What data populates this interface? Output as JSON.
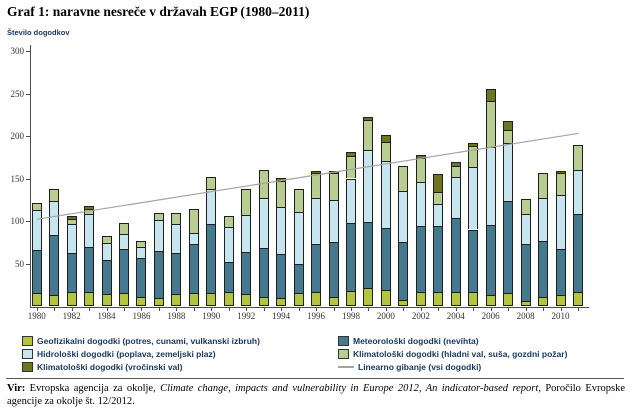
{
  "title": "Graf 1: naravne nesreče v državah EGP (1980–2011)",
  "y_axis_label": "Število dogodkov",
  "chart_data": {
    "type": "bar",
    "stacked": true,
    "title": "Graf 1: naravne nesreče v državah EGP (1980–2011)",
    "xlabel": "",
    "ylabel": "Število dogodkov",
    "ylim": [
      0,
      300
    ],
    "y_ticks": [
      50,
      100,
      150,
      200,
      250,
      300
    ],
    "grid": false,
    "legend_position": "bottom",
    "categories": [
      1980,
      1981,
      1982,
      1983,
      1984,
      1985,
      1986,
      1987,
      1988,
      1989,
      1990,
      1991,
      1992,
      1993,
      1994,
      1995,
      1996,
      1997,
      1998,
      1999,
      2000,
      2001,
      2002,
      2003,
      2004,
      2005,
      2006,
      2007,
      2008,
      2009,
      2010,
      2011
    ],
    "x_tick_labels": [
      "1980",
      "1982",
      "1984",
      "1986",
      "1988",
      "1990",
      "1992",
      "1994",
      "1996",
      "1998",
      "2000",
      "2002",
      "2004",
      "2006",
      "2008",
      "2010"
    ],
    "series": [
      {
        "name": "Geofizikalni dogodki (potres, cunami, vulkanski izbruh)",
        "color": "#b3c540",
        "values": [
          15,
          13,
          16,
          16,
          14,
          15,
          11,
          10,
          14,
          15,
          15,
          16,
          14,
          11,
          9,
          15,
          16,
          11,
          18,
          21,
          19,
          7,
          17,
          17,
          17,
          16,
          13,
          15,
          6,
          11,
          13,
          16
        ]
      },
      {
        "name": "Meteorološki dogodki (nevihta)",
        "color": "#44798e",
        "values": [
          51,
          71,
          46,
          53,
          40,
          52,
          46,
          55,
          48,
          58,
          82,
          36,
          49,
          57,
          52,
          34,
          57,
          64,
          80,
          78,
          73,
          68,
          77,
          77,
          87,
          74,
          82,
          109,
          67,
          66,
          54,
          92
        ]
      },
      {
        "name": "Hidrološki dogodki (poplava, zemeljski plaz)",
        "color": "#c6e5ef",
        "values": [
          47,
          40,
          34,
          39,
          20,
          18,
          12,
          36,
          35,
          13,
          41,
          41,
          44,
          59,
          56,
          62,
          54,
          50,
          52,
          84,
          79,
          60,
          52,
          26,
          48,
          74,
          92,
          68,
          35,
          50,
          64,
          52
        ]
      },
      {
        "name": "Klimatološki dogodki (hladni val, suša, gozdni požar)",
        "color": "#b9cc92",
        "values": [
          8,
          14,
          6,
          6,
          8,
          13,
          7,
          8,
          12,
          28,
          14,
          13,
          31,
          33,
          30,
          27,
          29,
          31,
          26,
          36,
          22,
          30,
          28,
          14,
          13,
          24,
          54,
          15,
          18,
          30,
          25,
          30
        ]
      },
      {
        "name": "Klimatološki dogodki (vročinski val)",
        "color": "#6d7520",
        "values": [
          0,
          0,
          4,
          4,
          0,
          0,
          0,
          0,
          0,
          0,
          0,
          0,
          0,
          0,
          4,
          0,
          3,
          3,
          5,
          3,
          8,
          0,
          4,
          21,
          5,
          4,
          14,
          11,
          0,
          0,
          3,
          0
        ]
      }
    ],
    "trend": {
      "name": "Linearno gibanje (vsi dogodki)",
      "color": "#a3a3a3",
      "start_value": 102,
      "end_value": 203
    },
    "legend_layout": {
      "left": [
        0,
        2,
        4
      ],
      "right": [
        1,
        3,
        -1
      ]
    }
  },
  "source": {
    "prefix": "Vir:",
    "part1": " Evropska agencija za okolje, ",
    "italic_title": "Climate change, impacts and vulnerability in Europe 2012, An indicator-based report",
    "part2": ", Poročilo Evropske agencije za okolje št. 12/2012."
  }
}
